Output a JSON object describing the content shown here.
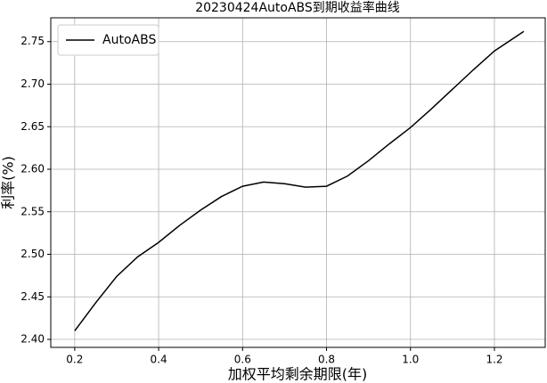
{
  "chart_data": {
    "type": "line",
    "title": "20230424AutoABS到期收益率曲线",
    "x_label": "加权平均剩余期限(年)",
    "y_label": "利率(%)",
    "x": [
      0.2,
      0.25,
      0.3,
      0.35,
      0.4,
      0.45,
      0.5,
      0.55,
      0.6,
      0.65,
      0.7,
      0.75,
      0.8,
      0.85,
      0.9,
      0.95,
      1.0,
      1.05,
      1.1,
      1.15,
      1.2,
      1.27
    ],
    "series": [
      {
        "name": "AutoABS",
        "color": "#000000",
        "values": [
          2.41,
          2.443,
          2.474,
          2.497,
          2.514,
          2.534,
          2.552,
          2.568,
          2.58,
          2.585,
          2.583,
          2.579,
          2.58,
          2.592,
          2.61,
          2.63,
          2.649,
          2.671,
          2.694,
          2.717,
          2.739,
          2.762
        ]
      }
    ],
    "xlim": [
      0.143,
      1.321
    ],
    "ylim": [
      2.3906,
      2.778
    ],
    "xticks": [
      0.2,
      0.4,
      0.6,
      0.8,
      {
        "value": 1.0,
        "label": "1.0"
      },
      1.2
    ],
    "yticks": [
      {
        "value": 2.4,
        "label": "2.40"
      },
      2.45,
      {
        "value": 2.5,
        "label": "2.50"
      },
      2.55,
      {
        "value": 2.6,
        "label": "2.60"
      },
      2.65,
      {
        "value": 2.7,
        "label": "2.70"
      },
      2.75
    ],
    "grid": true,
    "legend": "upper left"
  }
}
